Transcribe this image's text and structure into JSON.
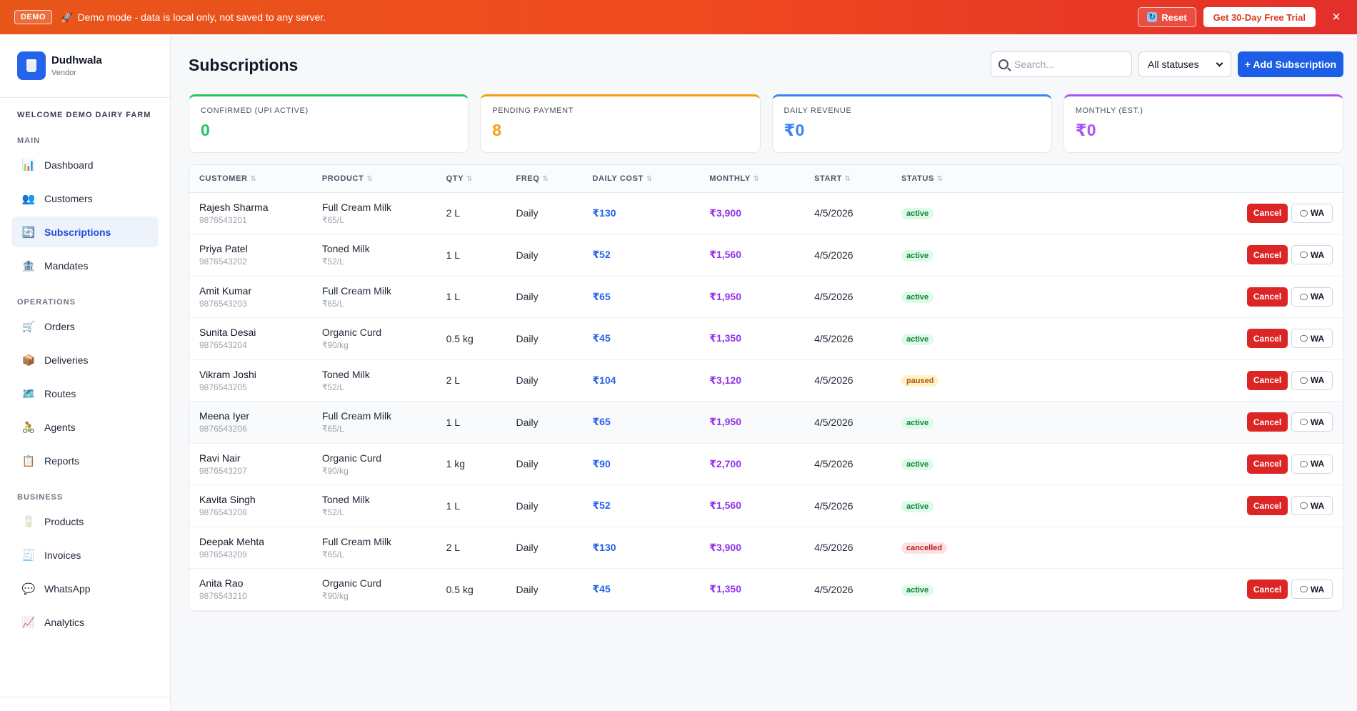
{
  "banner": {
    "badge": "DEMO",
    "icon": "rocket-icon",
    "text": "Demo mode - data is local only, not saved to any server.",
    "reset_label": "Reset",
    "trial_label": "Get 30-Day Free Trial",
    "close_glyph": "×"
  },
  "brand": {
    "name": "Dudhwala",
    "role": "Vendor"
  },
  "sidebar": {
    "welcome": "WELCOME DEMO DAIRY FARM",
    "sections": [
      {
        "label": "MAIN",
        "items": [
          {
            "label": "Dashboard",
            "icon": "📊"
          },
          {
            "label": "Customers",
            "icon": "👥"
          },
          {
            "label": "Subscriptions",
            "icon": "🔄",
            "active": true
          },
          {
            "label": "Mandates",
            "icon": "🏦"
          }
        ]
      },
      {
        "label": "OPERATIONS",
        "items": [
          {
            "label": "Orders",
            "icon": "🛒"
          },
          {
            "label": "Deliveries",
            "icon": "📦"
          },
          {
            "label": "Routes",
            "icon": "🗺️"
          },
          {
            "label": "Agents",
            "icon": "🚴"
          },
          {
            "label": "Reports",
            "icon": "📋"
          }
        ]
      },
      {
        "label": "BUSINESS",
        "items": [
          {
            "label": "Products",
            "icon": "🥛"
          },
          {
            "label": "Invoices",
            "icon": "🧾"
          },
          {
            "label": "WhatsApp",
            "icon": "💬"
          },
          {
            "label": "Analytics",
            "icon": "📈"
          }
        ]
      }
    ]
  },
  "header": {
    "title": "Subscriptions",
    "search_placeholder": "Search...",
    "status_filter": "All statuses",
    "add_label": "+ Add Subscription"
  },
  "stats": [
    {
      "label": "CONFIRMED (UPI ACTIVE)",
      "value": "0",
      "color": "#22c55e"
    },
    {
      "label": "PENDING PAYMENT",
      "value": "8",
      "color": "#f59e0b"
    },
    {
      "label": "DAILY REVENUE",
      "value": "₹0",
      "color": "#3b82f6"
    },
    {
      "label": "MONTHLY (EST.)",
      "value": "₹0",
      "color": "#a855f7"
    }
  ],
  "table": {
    "columns": [
      "CUSTOMER",
      "PRODUCT",
      "QTY",
      "FREQ",
      "DAILY COST",
      "MONTHLY",
      "START",
      "STATUS"
    ],
    "cancel_label": "Cancel",
    "wa_label": "WA",
    "rows": [
      {
        "name": "Rajesh Sharma",
        "phone": "9876543201",
        "product": "Full Cream Milk",
        "price": "₹65/L",
        "qty": "2 L",
        "freq": "Daily",
        "daily": "₹130",
        "monthly": "₹3,900",
        "start": "4/5/2026",
        "status": "active"
      },
      {
        "name": "Priya Patel",
        "phone": "9876543202",
        "product": "Toned Milk",
        "price": "₹52/L",
        "qty": "1 L",
        "freq": "Daily",
        "daily": "₹52",
        "monthly": "₹1,560",
        "start": "4/5/2026",
        "status": "active"
      },
      {
        "name": "Amit Kumar",
        "phone": "9876543203",
        "product": "Full Cream Milk",
        "price": "₹65/L",
        "qty": "1 L",
        "freq": "Daily",
        "daily": "₹65",
        "monthly": "₹1,950",
        "start": "4/5/2026",
        "status": "active"
      },
      {
        "name": "Sunita Desai",
        "phone": "9876543204",
        "product": "Organic Curd",
        "price": "₹90/kg",
        "qty": "0.5 kg",
        "freq": "Daily",
        "daily": "₹45",
        "monthly": "₹1,350",
        "start": "4/5/2026",
        "status": "active"
      },
      {
        "name": "Vikram Joshi",
        "phone": "9876543205",
        "product": "Toned Milk",
        "price": "₹52/L",
        "qty": "2 L",
        "freq": "Daily",
        "daily": "₹104",
        "monthly": "₹3,120",
        "start": "4/5/2026",
        "status": "paused"
      },
      {
        "name": "Meena Iyer",
        "phone": "9876543206",
        "product": "Full Cream Milk",
        "price": "₹65/L",
        "qty": "1 L",
        "freq": "Daily",
        "daily": "₹65",
        "monthly": "₹1,950",
        "start": "4/5/2026",
        "status": "active"
      },
      {
        "name": "Ravi Nair",
        "phone": "9876543207",
        "product": "Organic Curd",
        "price": "₹90/kg",
        "qty": "1 kg",
        "freq": "Daily",
        "daily": "₹90",
        "monthly": "₹2,700",
        "start": "4/5/2026",
        "status": "active"
      },
      {
        "name": "Kavita Singh",
        "phone": "9876543208",
        "product": "Toned Milk",
        "price": "₹52/L",
        "qty": "1 L",
        "freq": "Daily",
        "daily": "₹52",
        "monthly": "₹1,560",
        "start": "4/5/2026",
        "status": "active"
      },
      {
        "name": "Deepak Mehta",
        "phone": "9876543209",
        "product": "Full Cream Milk",
        "price": "₹65/L",
        "qty": "2 L",
        "freq": "Daily",
        "daily": "₹130",
        "monthly": "₹3,900",
        "start": "4/5/2026",
        "status": "cancelled"
      },
      {
        "name": "Anita Rao",
        "phone": "9876543210",
        "product": "Organic Curd",
        "price": "₹90/kg",
        "qty": "0.5 kg",
        "freq": "Daily",
        "daily": "₹45",
        "monthly": "₹1,350",
        "start": "4/5/2026",
        "status": "active"
      }
    ]
  }
}
